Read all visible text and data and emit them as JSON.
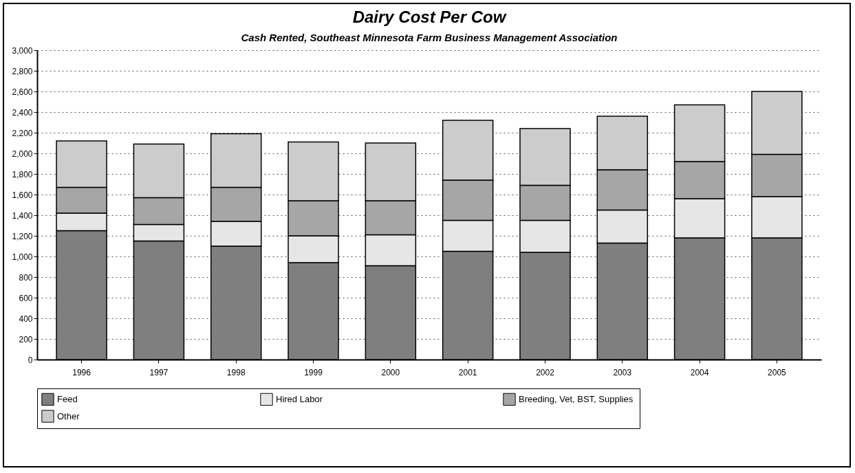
{
  "chart_data": {
    "type": "bar",
    "title": "Dairy Cost Per Cow",
    "subtitle": "Cash Rented, Southeast Minnesota Farm Business Management Association",
    "categories": [
      "1996",
      "1997",
      "1998",
      "1999",
      "2000",
      "2001",
      "2002",
      "2003",
      "2004",
      "2005"
    ],
    "stacked": true,
    "series": [
      {
        "name": "Feed",
        "color": "#7f7f7f",
        "values": [
          1250,
          1150,
          1100,
          940,
          910,
          1050,
          1040,
          1130,
          1180,
          1180
        ]
      },
      {
        "name": "Hired Labor",
        "color": "#e6e6e6",
        "values": [
          170,
          160,
          240,
          260,
          300,
          300,
          310,
          320,
          380,
          400
        ]
      },
      {
        "name": "Breeding, Vet,  BST, Supplies",
        "color": "#a6a6a6",
        "values": [
          250,
          260,
          330,
          340,
          330,
          390,
          340,
          390,
          360,
          410
        ]
      },
      {
        "name": "Other",
        "color": "#cccccc",
        "values": [
          450,
          520,
          520,
          570,
          560,
          580,
          550,
          520,
          550,
          610
        ]
      }
    ],
    "ylim": [
      0,
      3000
    ],
    "yticks": [
      0,
      200,
      400,
      600,
      800,
      {
        "value": 1000,
        "label": "1,000"
      },
      {
        "value": 1200,
        "label": "1,200"
      },
      {
        "value": 1400,
        "label": "1,400"
      },
      {
        "value": 1600,
        "label": "1,600"
      },
      {
        "value": 1800,
        "label": "1,800"
      },
      {
        "value": 2000,
        "label": "2,000"
      },
      {
        "value": 2200,
        "label": "2,200"
      },
      {
        "value": 2400,
        "label": "2,400"
      },
      {
        "value": 2600,
        "label": "2,600"
      },
      {
        "value": 2800,
        "label": "2,800"
      },
      {
        "value": 3000,
        "label": "3,000"
      }
    ],
    "grid": "y",
    "legend": "bottom"
  }
}
